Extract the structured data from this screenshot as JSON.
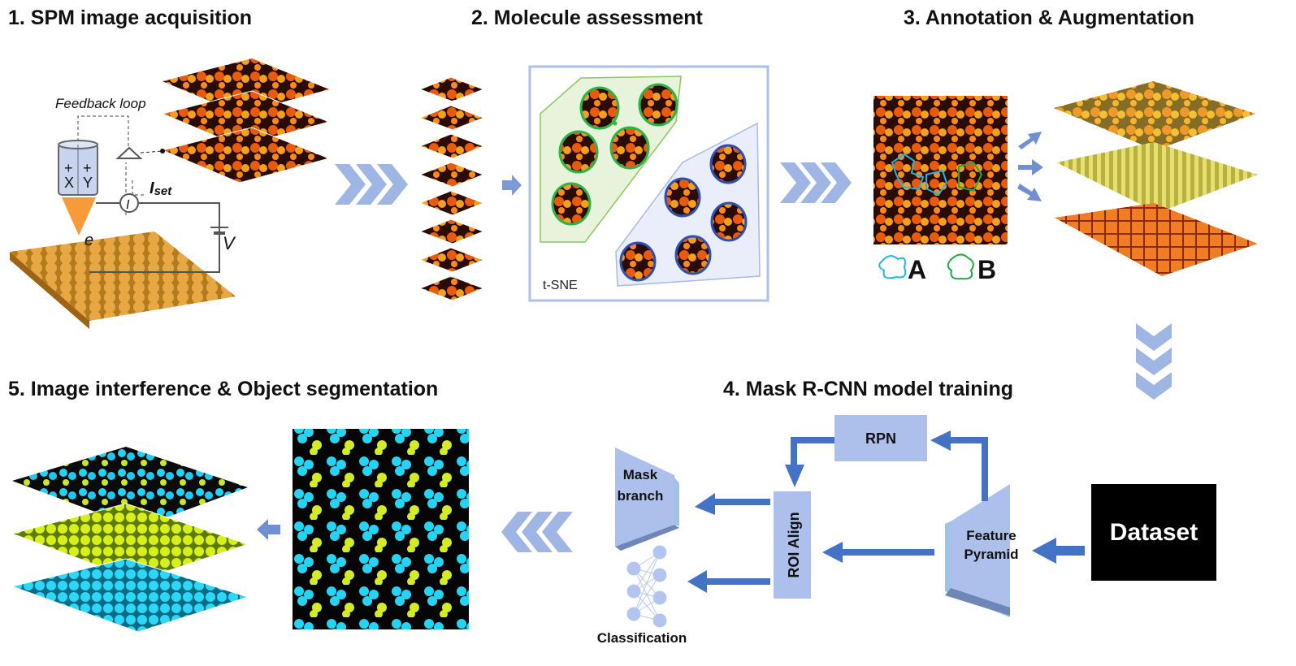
{
  "steps": {
    "s1": "1. SPM image acquisition",
    "s2": "2. Molecule assessment",
    "s3": "3. Annotation & Augmentation",
    "s4": "4. Mask R-CNN model training",
    "s5": "5. Image interference & Object segmentation"
  },
  "spm": {
    "feedback": "Feedback loop",
    "x": "X",
    "y": "Y",
    "plus": "+",
    "current": "I",
    "iset": "I",
    "iset_sub": "set",
    "e": "e",
    "v": "V"
  },
  "tsne": {
    "label": "t-SNE"
  },
  "annotation": {
    "a": "A",
    "b": "B"
  },
  "model": {
    "rpn": "RPN",
    "roi": "ROI Align",
    "mask1": "Mask",
    "mask2": "branch",
    "feature1": "Feature",
    "feature2": "Pyramid",
    "classification": "Classification",
    "dataset": "Dataset"
  },
  "colors": {
    "chevron": "#9fb5e3",
    "arrow": "#4472c4",
    "box": "#adc0ec",
    "cluster_green": "#2db34a",
    "cluster_blue": "#2f4fb5",
    "class_a": "#1fb5e8",
    "class_b": "#22a745"
  }
}
